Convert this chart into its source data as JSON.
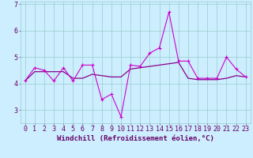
{
  "title": "",
  "xlabel": "Windchill (Refroidissement éolien,°C)",
  "ylabel": "",
  "x": [
    0,
    1,
    2,
    3,
    4,
    5,
    6,
    7,
    8,
    9,
    10,
    11,
    12,
    13,
    14,
    15,
    16,
    17,
    18,
    19,
    20,
    21,
    22,
    23
  ],
  "y_jagged": [
    4.1,
    4.6,
    4.5,
    4.1,
    4.6,
    4.1,
    4.7,
    4.7,
    3.4,
    3.6,
    2.75,
    4.7,
    4.65,
    5.15,
    5.35,
    6.7,
    4.85,
    4.85,
    4.2,
    4.2,
    4.2,
    5.0,
    4.55,
    4.25
  ],
  "y_smooth": [
    4.1,
    4.45,
    4.45,
    4.45,
    4.45,
    4.2,
    4.2,
    4.35,
    4.3,
    4.25,
    4.25,
    4.55,
    4.6,
    4.65,
    4.7,
    4.75,
    4.8,
    4.2,
    4.15,
    4.15,
    4.15,
    4.2,
    4.3,
    4.25
  ],
  "line_color1": "#880088",
  "line_color2": "#cc00cc",
  "bg_color": "#cceeff",
  "grid_color": "#99cccc",
  "text_color": "#660066",
  "ylim": [
    2.5,
    7.1
  ],
  "xlim": [
    -0.5,
    23.5
  ],
  "yticks": [
    3,
    4,
    5,
    6,
    7
  ],
  "xticks": [
    0,
    1,
    2,
    3,
    4,
    5,
    6,
    7,
    8,
    9,
    10,
    11,
    12,
    13,
    14,
    15,
    16,
    17,
    18,
    19,
    20,
    21,
    22,
    23
  ],
  "tick_fontsize": 6.0,
  "xlabel_fontsize": 6.5,
  "lw_jagged": 0.8,
  "lw_smooth": 0.9,
  "marker_size": 3.5
}
